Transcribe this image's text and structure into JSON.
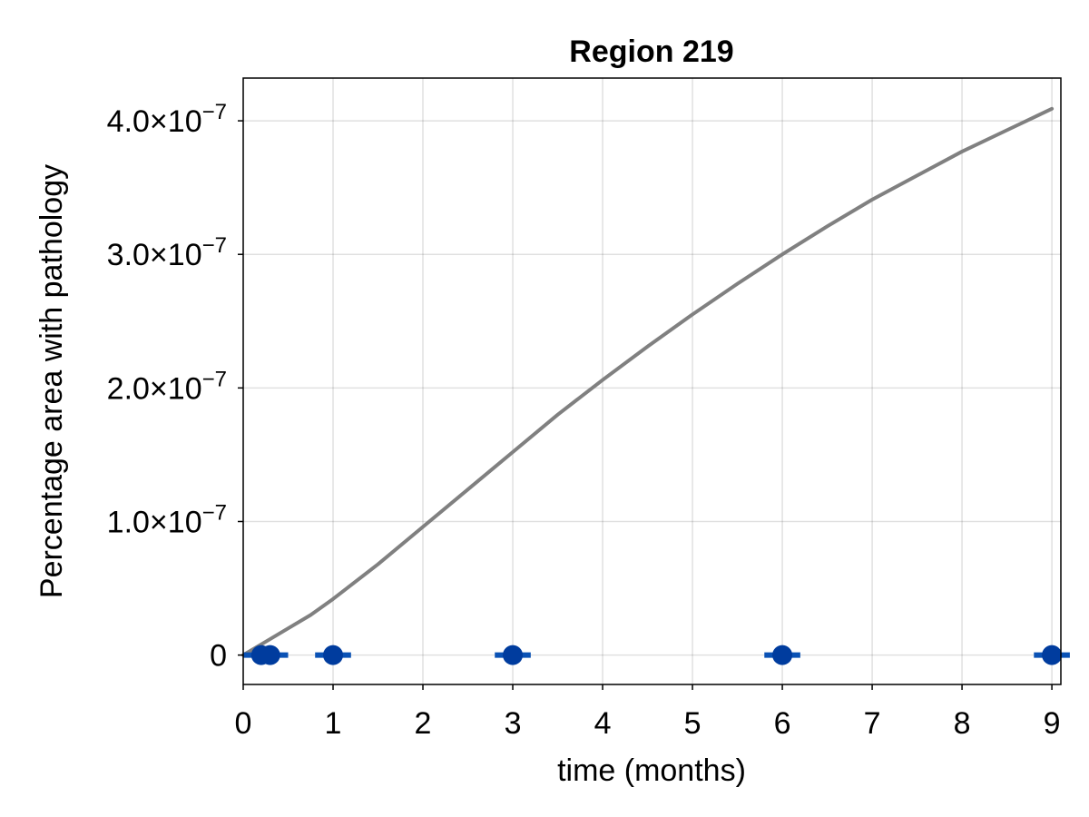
{
  "chart_data": {
    "type": "line",
    "title": "Region 219",
    "xlabel": "time (months)",
    "ylabel": "Percentage area with pathology",
    "xlim": [
      0,
      9.1
    ],
    "ylim": [
      -2.2e-08,
      4.32e-07
    ],
    "x_ticks": [
      {
        "value": 0,
        "label": "0"
      },
      {
        "value": 1,
        "label": "1"
      },
      {
        "value": 2,
        "label": "2"
      },
      {
        "value": 3,
        "label": "3"
      },
      {
        "value": 4,
        "label": "4"
      },
      {
        "value": 5,
        "label": "5"
      },
      {
        "value": 6,
        "label": "6"
      },
      {
        "value": 7,
        "label": "7"
      },
      {
        "value": 8,
        "label": "8"
      },
      {
        "value": 9,
        "label": "9"
      }
    ],
    "y_ticks": [
      {
        "value": 0,
        "label": "0"
      },
      {
        "value": 1e-07,
        "label": "1.0×10",
        "exp": "−7"
      },
      {
        "value": 2e-07,
        "label": "2.0×10",
        "exp": "−7"
      },
      {
        "value": 3e-07,
        "label": "3.0×10",
        "exp": "−7"
      },
      {
        "value": 4e-07,
        "label": "4.0×10",
        "exp": "−7"
      }
    ],
    "grid": true,
    "series": [
      {
        "kind": "line",
        "color": "#808080",
        "x": [
          0,
          0.25,
          0.5,
          0.75,
          1,
          1.5,
          2,
          2.5,
          3,
          3.5,
          4,
          4.5,
          5,
          5.5,
          6,
          6.5,
          7,
          7.5,
          8,
          8.5,
          9
        ],
        "y": [
          0,
          1e-08,
          2e-08,
          3e-08,
          4.2e-08,
          6.8e-08,
          9.6e-08,
          1.24e-07,
          1.52e-07,
          1.8e-07,
          2.06e-07,
          2.31e-07,
          2.55e-07,
          2.78e-07,
          3e-07,
          3.21e-07,
          3.41e-07,
          3.59e-07,
          3.77e-07,
          3.93e-07,
          4.09e-07
        ]
      },
      {
        "kind": "points",
        "color": "#003c9e",
        "errorbar_color": "#0a52b5",
        "x": [
          0.2,
          0.3,
          1,
          3,
          6,
          9
        ],
        "y": [
          0,
          0,
          0,
          0,
          0,
          0
        ],
        "xerr": [
          0.2,
          0.2,
          0.2,
          0.2,
          0.2,
          0.2
        ]
      }
    ]
  }
}
